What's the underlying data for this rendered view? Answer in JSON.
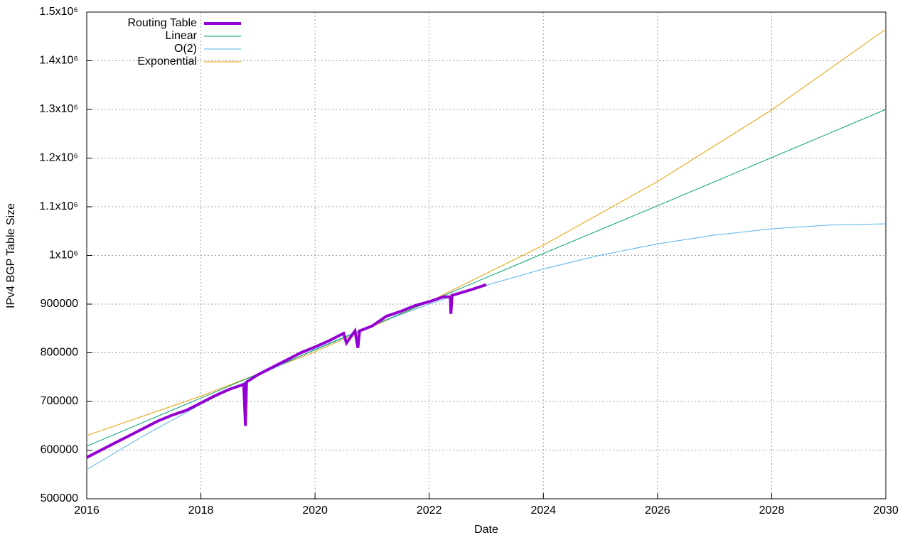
{
  "chart_data": {
    "type": "line",
    "xlabel": "Date",
    "ylabel": "IPv4 BGP Table Size",
    "xlim": [
      2016,
      2030
    ],
    "xticks": [
      2016,
      2018,
      2020,
      2022,
      2024,
      2026,
      2028,
      2030
    ],
    "ylim": [
      500000,
      1500000
    ],
    "yticks": [
      500000,
      600000,
      700000,
      800000,
      900000,
      {
        "value": 1000000,
        "label": "1x10⁶"
      },
      {
        "value": 1100000,
        "label": "1.1x10⁶"
      },
      {
        "value": 1200000,
        "label": "1.2x10⁶"
      },
      {
        "value": 1300000,
        "label": "1.3x10⁶"
      },
      {
        "value": 1400000,
        "label": "1.4x10⁶"
      },
      {
        "value": 1500000,
        "label": "1.5x10⁶"
      }
    ],
    "grid": true,
    "legend": "top-left",
    "series": [
      {
        "name": "Routing Table",
        "color": "#9400d3",
        "width": 4,
        "x": [
          2016.0,
          2016.25,
          2016.5,
          2016.75,
          2017.0,
          2017.25,
          2017.5,
          2017.75,
          2018.0,
          2018.25,
          2018.5,
          2018.75,
          2018.78,
          2018.8,
          2019.0,
          2019.25,
          2019.5,
          2019.75,
          2020.0,
          2020.25,
          2020.5,
          2020.55,
          2020.7,
          2020.75,
          2020.78,
          2021.0,
          2021.25,
          2021.5,
          2021.75,
          2022.0,
          2022.25,
          2022.37,
          2022.38,
          2022.4,
          2022.75,
          2023.0
        ],
        "values": [
          585000,
          600000,
          615000,
          630000,
          645000,
          660000,
          672000,
          682000,
          697000,
          712000,
          725000,
          735000,
          650000,
          740000,
          755000,
          770000,
          785000,
          800000,
          812000,
          825000,
          840000,
          820000,
          845000,
          810000,
          845000,
          855000,
          875000,
          885000,
          897000,
          905000,
          915000,
          915000,
          880000,
          918000,
          930000,
          940000
        ]
      },
      {
        "name": "Linear",
        "color": "#009e73",
        "width": 1,
        "x": [
          2016,
          2018,
          2020,
          2022,
          2024,
          2026,
          2028,
          2030
        ],
        "values": [
          608000,
          707000,
          806000,
          905000,
          1004000,
          1102000,
          1201000,
          1300000
        ]
      },
      {
        "name": "O(2)",
        "color": "#56b4e9",
        "width": 1,
        "x": [
          2016,
          2017,
          2018,
          2019,
          2020,
          2021,
          2022,
          2023,
          2024,
          2025,
          2026,
          2027,
          2028,
          2029,
          2030
        ],
        "values": [
          560000,
          629500,
          694000,
          753200,
          807300,
          856300,
          900100,
          938700,
          972200,
          1000600,
          1023800,
          1041800,
          1054700,
          1062400,
          1065000
        ]
      },
      {
        "name": "Exponential",
        "color": "#e69f00",
        "width": 1,
        "x": [
          2016,
          2018,
          2020,
          2022,
          2024,
          2026,
          2028,
          2030
        ],
        "values": [
          630000,
          711000,
          802000,
          905000,
          1021000,
          1152000,
          1299000,
          1465000
        ]
      }
    ]
  }
}
